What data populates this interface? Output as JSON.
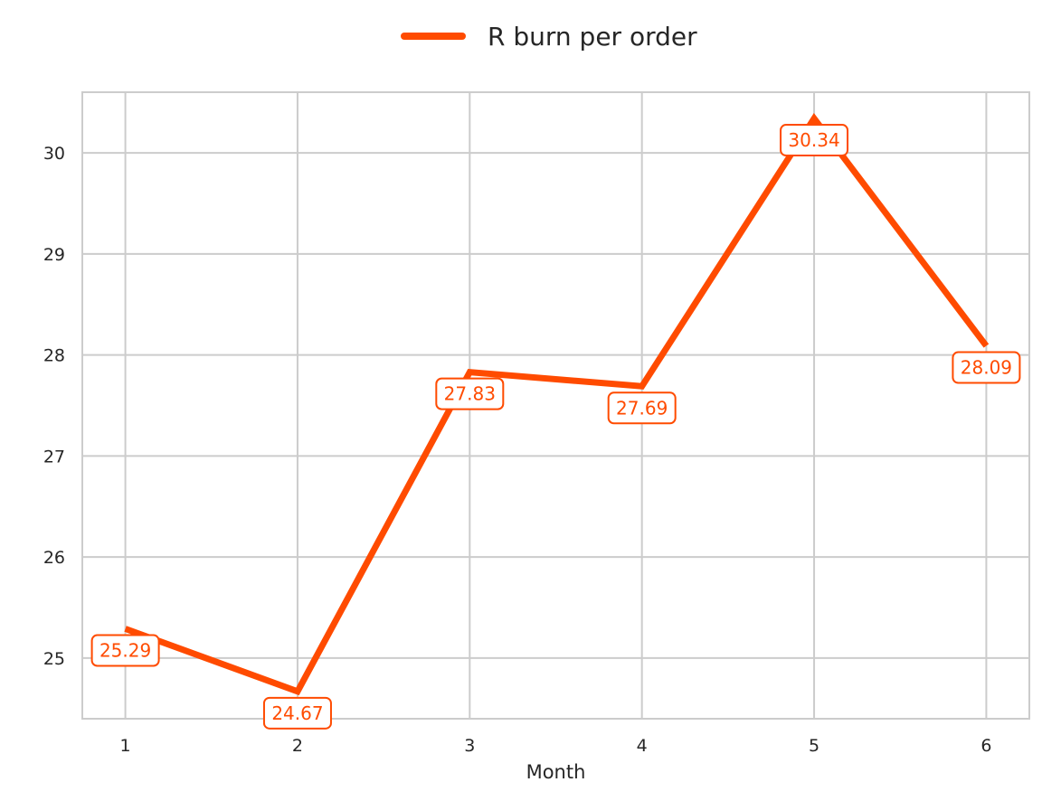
{
  "chart_data": {
    "type": "line",
    "title": "",
    "xlabel": "Month",
    "ylabel": "",
    "x": [
      1,
      2,
      3,
      4,
      5,
      6
    ],
    "x_tick_labels": [
      "1",
      "2",
      "3",
      "4",
      "5",
      "6"
    ],
    "y_ticks": [
      25,
      26,
      27,
      28,
      29,
      30
    ],
    "y_tick_labels": [
      "25",
      "26",
      "27",
      "28",
      "29",
      "30"
    ],
    "xlim": [
      0.75,
      6.25
    ],
    "ylim": [
      24.4,
      30.6
    ],
    "grid": true,
    "legend_position": "top-center",
    "series": [
      {
        "name": "R burn per order",
        "color": "#ff4b00",
        "values": [
          25.29,
          24.67,
          27.83,
          27.69,
          30.34,
          28.09
        ],
        "data_labels": [
          "25.29",
          "24.67",
          "27.83",
          "27.69",
          "30.34",
          "28.09"
        ]
      }
    ]
  }
}
